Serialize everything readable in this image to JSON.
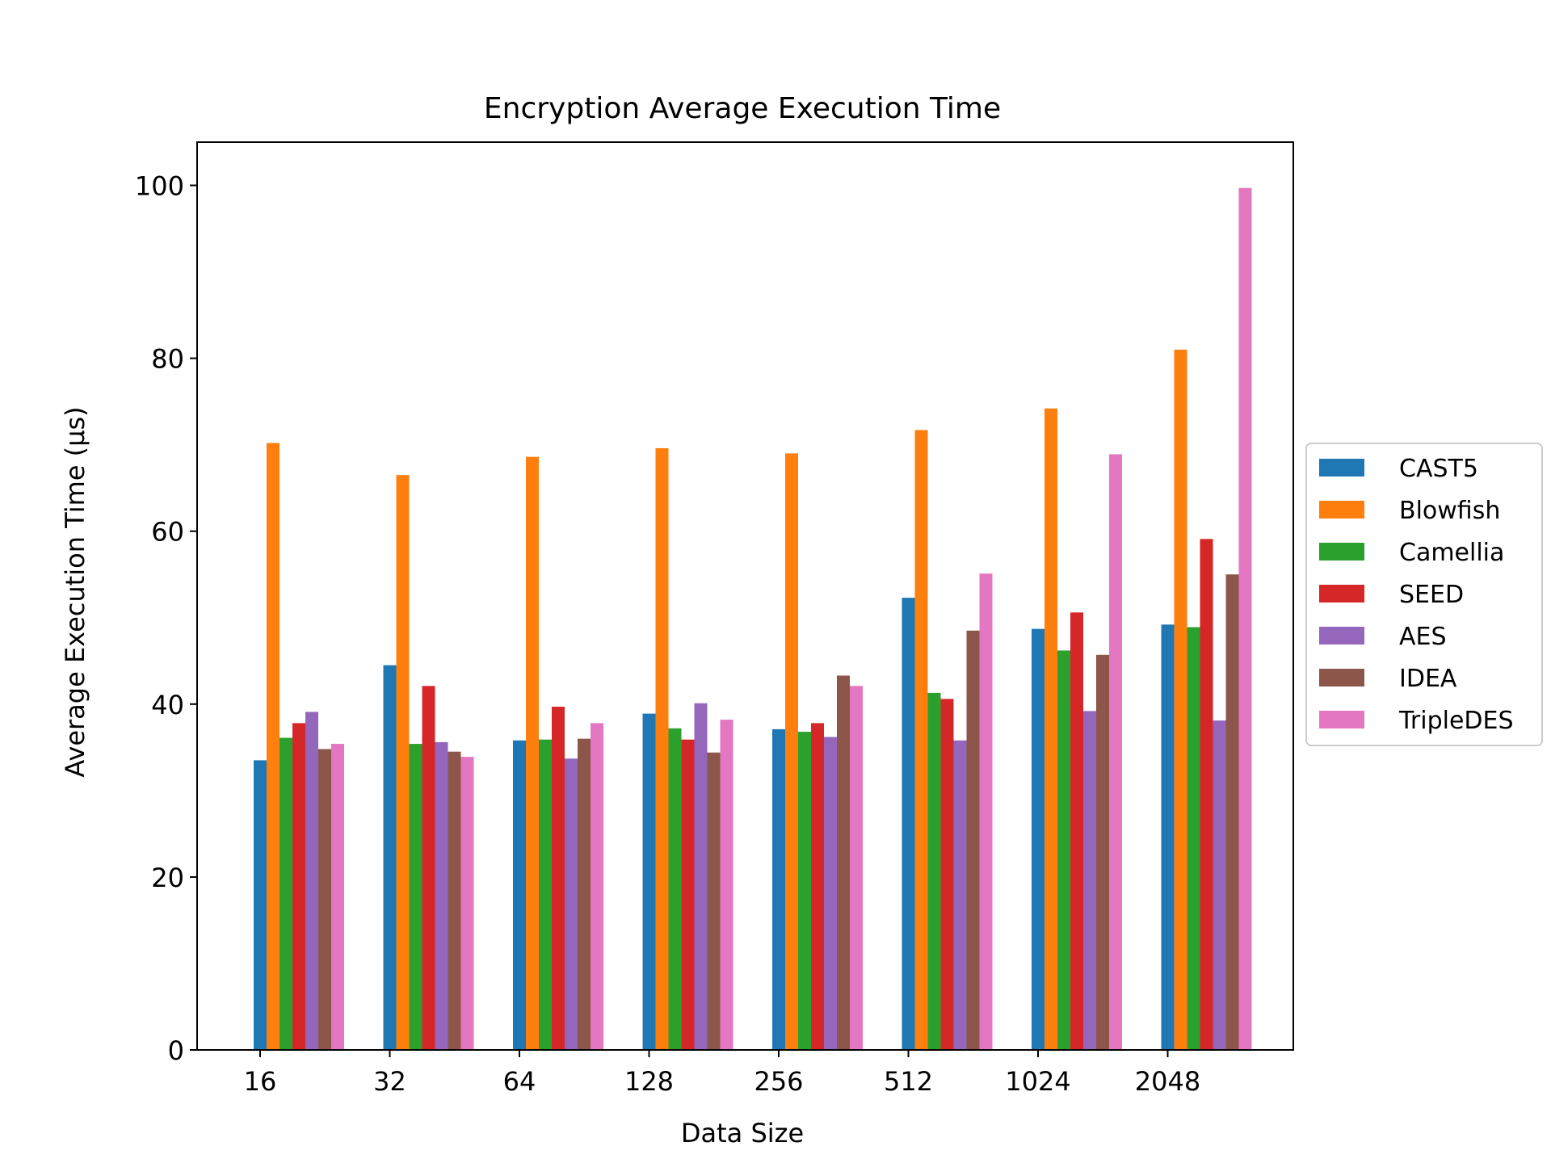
{
  "chart_data": {
    "type": "bar",
    "title": "Encryption Average Execution Time",
    "xlabel": "Data Size",
    "ylabel": "Average Execution Time (µs)",
    "ylim": [
      0,
      105
    ],
    "yticks": [
      0,
      20,
      40,
      60,
      80,
      100
    ],
    "categories": [
      "16",
      "32",
      "64",
      "128",
      "256",
      "512",
      "1024",
      "2048"
    ],
    "grid": false,
    "legend_position": "center-right outside",
    "series": [
      {
        "name": "CAST5",
        "color": "#1f77b4",
        "values": [
          33.5,
          44.5,
          35.8,
          38.9,
          37.1,
          52.3,
          48.7,
          49.2
        ]
      },
      {
        "name": "Blowfish",
        "color": "#ff7f0e",
        "values": [
          70.2,
          66.5,
          68.6,
          69.6,
          69.0,
          71.7,
          74.2,
          81.0
        ]
      },
      {
        "name": "Camellia",
        "color": "#2ca02c",
        "values": [
          36.1,
          35.4,
          35.9,
          37.2,
          36.8,
          41.3,
          46.2,
          48.9
        ]
      },
      {
        "name": "SEED",
        "color": "#d62728",
        "values": [
          37.8,
          42.1,
          39.7,
          35.9,
          37.8,
          40.6,
          50.6,
          59.1
        ]
      },
      {
        "name": "AES",
        "color": "#9467bd",
        "values": [
          39.1,
          35.6,
          33.7,
          40.1,
          36.2,
          35.8,
          39.2,
          38.1
        ]
      },
      {
        "name": "IDEA",
        "color": "#8c564b",
        "values": [
          34.8,
          34.5,
          36.0,
          34.4,
          43.3,
          48.5,
          45.7,
          55.0
        ]
      },
      {
        "name": "TripleDES",
        "color": "#e377c2",
        "values": [
          35.4,
          33.9,
          37.8,
          38.2,
          42.1,
          55.1,
          68.9,
          99.7
        ]
      }
    ]
  }
}
